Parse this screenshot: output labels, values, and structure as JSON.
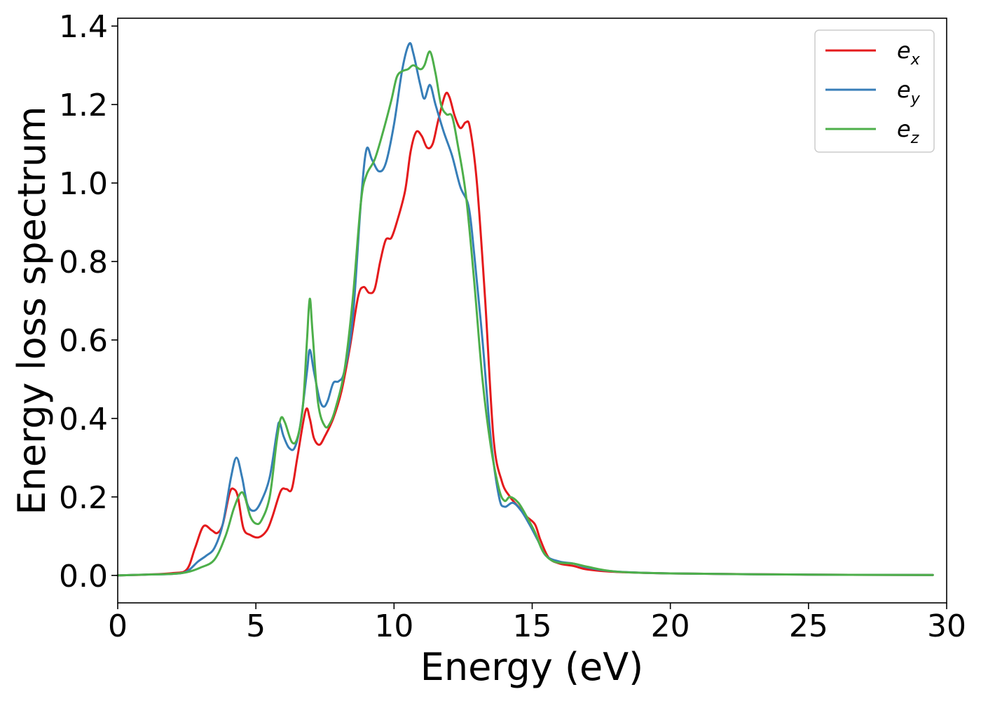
{
  "chart_data": {
    "type": "line",
    "title": "",
    "xlabel": "Energy (eV)",
    "ylabel": "Energy loss spectrum",
    "xlim": [
      0,
      30
    ],
    "ylim": [
      -0.07,
      1.42
    ],
    "xticks": [
      0,
      5,
      10,
      15,
      20,
      25,
      30
    ],
    "xtick_labels": [
      "0",
      "5",
      "10",
      "15",
      "20",
      "25",
      "30"
    ],
    "yticks": [
      0.0,
      0.2,
      0.4,
      0.6,
      0.8,
      1.0,
      1.2,
      1.4
    ],
    "ytick_labels": [
      "0.0",
      "0.2",
      "0.4",
      "0.6",
      "0.8",
      "1.0",
      "1.2",
      "1.4"
    ],
    "grid": false,
    "legend_position": "top-right",
    "series": [
      {
        "name": "e_x",
        "legend_base": "e",
        "legend_sub": "x",
        "color": "#e41a1c",
        "points": [
          [
            0,
            0
          ],
          [
            1,
            0.002
          ],
          [
            2,
            0.006
          ],
          [
            2.5,
            0.015
          ],
          [
            2.8,
            0.07
          ],
          [
            3.1,
            0.125
          ],
          [
            3.4,
            0.115
          ],
          [
            3.6,
            0.108
          ],
          [
            3.8,
            0.13
          ],
          [
            4.05,
            0.21
          ],
          [
            4.2,
            0.22
          ],
          [
            4.35,
            0.2
          ],
          [
            4.55,
            0.12
          ],
          [
            4.8,
            0.103
          ],
          [
            5.1,
            0.097
          ],
          [
            5.4,
            0.115
          ],
          [
            5.6,
            0.15
          ],
          [
            5.9,
            0.215
          ],
          [
            6.1,
            0.22
          ],
          [
            6.3,
            0.22
          ],
          [
            6.5,
            0.3
          ],
          [
            6.8,
            0.42
          ],
          [
            6.95,
            0.4
          ],
          [
            7.1,
            0.35
          ],
          [
            7.3,
            0.333
          ],
          [
            7.5,
            0.355
          ],
          [
            7.8,
            0.4
          ],
          [
            8.1,
            0.47
          ],
          [
            8.4,
            0.58
          ],
          [
            8.7,
            0.71
          ],
          [
            8.9,
            0.735
          ],
          [
            9.1,
            0.72
          ],
          [
            9.3,
            0.73
          ],
          [
            9.5,
            0.8
          ],
          [
            9.7,
            0.855
          ],
          [
            9.9,
            0.86
          ],
          [
            10.1,
            0.9
          ],
          [
            10.4,
            0.98
          ],
          [
            10.6,
            1.08
          ],
          [
            10.8,
            1.13
          ],
          [
            11.0,
            1.12
          ],
          [
            11.2,
            1.09
          ],
          [
            11.4,
            1.1
          ],
          [
            11.6,
            1.16
          ],
          [
            11.85,
            1.225
          ],
          [
            12.0,
            1.22
          ],
          [
            12.2,
            1.17
          ],
          [
            12.4,
            1.14
          ],
          [
            12.6,
            1.155
          ],
          [
            12.75,
            1.14
          ],
          [
            13.0,
            1.0
          ],
          [
            13.3,
            0.7
          ],
          [
            13.6,
            0.35
          ],
          [
            13.9,
            0.24
          ],
          [
            14.2,
            0.2
          ],
          [
            14.5,
            0.175
          ],
          [
            14.8,
            0.15
          ],
          [
            15.1,
            0.13
          ],
          [
            15.3,
            0.09
          ],
          [
            15.6,
            0.045
          ],
          [
            16.0,
            0.03
          ],
          [
            16.5,
            0.024
          ],
          [
            17.0,
            0.015
          ],
          [
            18.0,
            0.009
          ],
          [
            20,
            0.005
          ],
          [
            25,
            0.002
          ],
          [
            29.5,
            0.001
          ]
        ]
      },
      {
        "name": "e_y",
        "legend_base": "e",
        "legend_sub": "y",
        "color": "#377eb8",
        "points": [
          [
            0,
            0
          ],
          [
            1,
            0.002
          ],
          [
            2,
            0.004
          ],
          [
            2.5,
            0.01
          ],
          [
            2.9,
            0.035
          ],
          [
            3.2,
            0.05
          ],
          [
            3.5,
            0.07
          ],
          [
            3.8,
            0.13
          ],
          [
            4.1,
            0.25
          ],
          [
            4.3,
            0.3
          ],
          [
            4.5,
            0.25
          ],
          [
            4.7,
            0.18
          ],
          [
            4.95,
            0.165
          ],
          [
            5.2,
            0.19
          ],
          [
            5.5,
            0.25
          ],
          [
            5.75,
            0.36
          ],
          [
            5.85,
            0.39
          ],
          [
            6.0,
            0.355
          ],
          [
            6.2,
            0.325
          ],
          [
            6.4,
            0.325
          ],
          [
            6.6,
            0.38
          ],
          [
            6.85,
            0.52
          ],
          [
            6.95,
            0.575
          ],
          [
            7.1,
            0.52
          ],
          [
            7.3,
            0.45
          ],
          [
            7.45,
            0.43
          ],
          [
            7.6,
            0.445
          ],
          [
            7.8,
            0.49
          ],
          [
            8.0,
            0.495
          ],
          [
            8.2,
            0.52
          ],
          [
            8.5,
            0.65
          ],
          [
            8.8,
            0.95
          ],
          [
            9.0,
            1.085
          ],
          [
            9.2,
            1.06
          ],
          [
            9.45,
            1.03
          ],
          [
            9.7,
            1.05
          ],
          [
            10.0,
            1.15
          ],
          [
            10.3,
            1.29
          ],
          [
            10.55,
            1.355
          ],
          [
            10.7,
            1.33
          ],
          [
            10.95,
            1.25
          ],
          [
            11.1,
            1.215
          ],
          [
            11.3,
            1.25
          ],
          [
            11.5,
            1.2
          ],
          [
            11.8,
            1.13
          ],
          [
            12.1,
            1.07
          ],
          [
            12.4,
            0.99
          ],
          [
            12.7,
            0.94
          ],
          [
            12.9,
            0.82
          ],
          [
            13.2,
            0.6
          ],
          [
            13.5,
            0.35
          ],
          [
            13.8,
            0.2
          ],
          [
            14.0,
            0.175
          ],
          [
            14.3,
            0.185
          ],
          [
            14.6,
            0.165
          ],
          [
            14.9,
            0.13
          ],
          [
            15.2,
            0.09
          ],
          [
            15.5,
            0.05
          ],
          [
            16.0,
            0.035
          ],
          [
            16.5,
            0.03
          ],
          [
            17.0,
            0.02
          ],
          [
            18.0,
            0.01
          ],
          [
            20,
            0.005
          ],
          [
            25,
            0.002
          ],
          [
            29.5,
            0.001
          ]
        ]
      },
      {
        "name": "e_z",
        "legend_base": "e",
        "legend_sub": "z",
        "color": "#4daf4a",
        "points": [
          [
            0,
            0
          ],
          [
            1,
            0.002
          ],
          [
            2,
            0.004
          ],
          [
            2.5,
            0.008
          ],
          [
            3.0,
            0.02
          ],
          [
            3.5,
            0.04
          ],
          [
            3.9,
            0.1
          ],
          [
            4.2,
            0.17
          ],
          [
            4.45,
            0.21
          ],
          [
            4.6,
            0.2
          ],
          [
            4.8,
            0.15
          ],
          [
            5.0,
            0.132
          ],
          [
            5.2,
            0.14
          ],
          [
            5.5,
            0.2
          ],
          [
            5.75,
            0.34
          ],
          [
            5.9,
            0.4
          ],
          [
            6.05,
            0.39
          ],
          [
            6.3,
            0.34
          ],
          [
            6.5,
            0.35
          ],
          [
            6.7,
            0.43
          ],
          [
            6.85,
            0.6
          ],
          [
            6.95,
            0.705
          ],
          [
            7.05,
            0.62
          ],
          [
            7.25,
            0.44
          ],
          [
            7.5,
            0.38
          ],
          [
            7.7,
            0.39
          ],
          [
            7.9,
            0.43
          ],
          [
            8.2,
            0.52
          ],
          [
            8.5,
            0.7
          ],
          [
            8.8,
            0.95
          ],
          [
            9.0,
            1.02
          ],
          [
            9.3,
            1.06
          ],
          [
            9.6,
            1.13
          ],
          [
            9.9,
            1.21
          ],
          [
            10.1,
            1.27
          ],
          [
            10.3,
            1.285
          ],
          [
            10.5,
            1.29
          ],
          [
            10.7,
            1.3
          ],
          [
            10.95,
            1.29
          ],
          [
            11.1,
            1.3
          ],
          [
            11.3,
            1.335
          ],
          [
            11.5,
            1.28
          ],
          [
            11.7,
            1.2
          ],
          [
            11.9,
            1.175
          ],
          [
            12.1,
            1.17
          ],
          [
            12.3,
            1.1
          ],
          [
            12.6,
            0.97
          ],
          [
            12.9,
            0.75
          ],
          [
            13.2,
            0.5
          ],
          [
            13.5,
            0.33
          ],
          [
            13.8,
            0.22
          ],
          [
            14.0,
            0.19
          ],
          [
            14.2,
            0.2
          ],
          [
            14.5,
            0.185
          ],
          [
            14.8,
            0.15
          ],
          [
            15.1,
            0.11
          ],
          [
            15.4,
            0.06
          ],
          [
            15.8,
            0.035
          ],
          [
            16.5,
            0.03
          ],
          [
            17.0,
            0.022
          ],
          [
            18.0,
            0.01
          ],
          [
            20,
            0.005
          ],
          [
            25,
            0.002
          ],
          [
            29.5,
            0.001
          ]
        ]
      }
    ]
  }
}
